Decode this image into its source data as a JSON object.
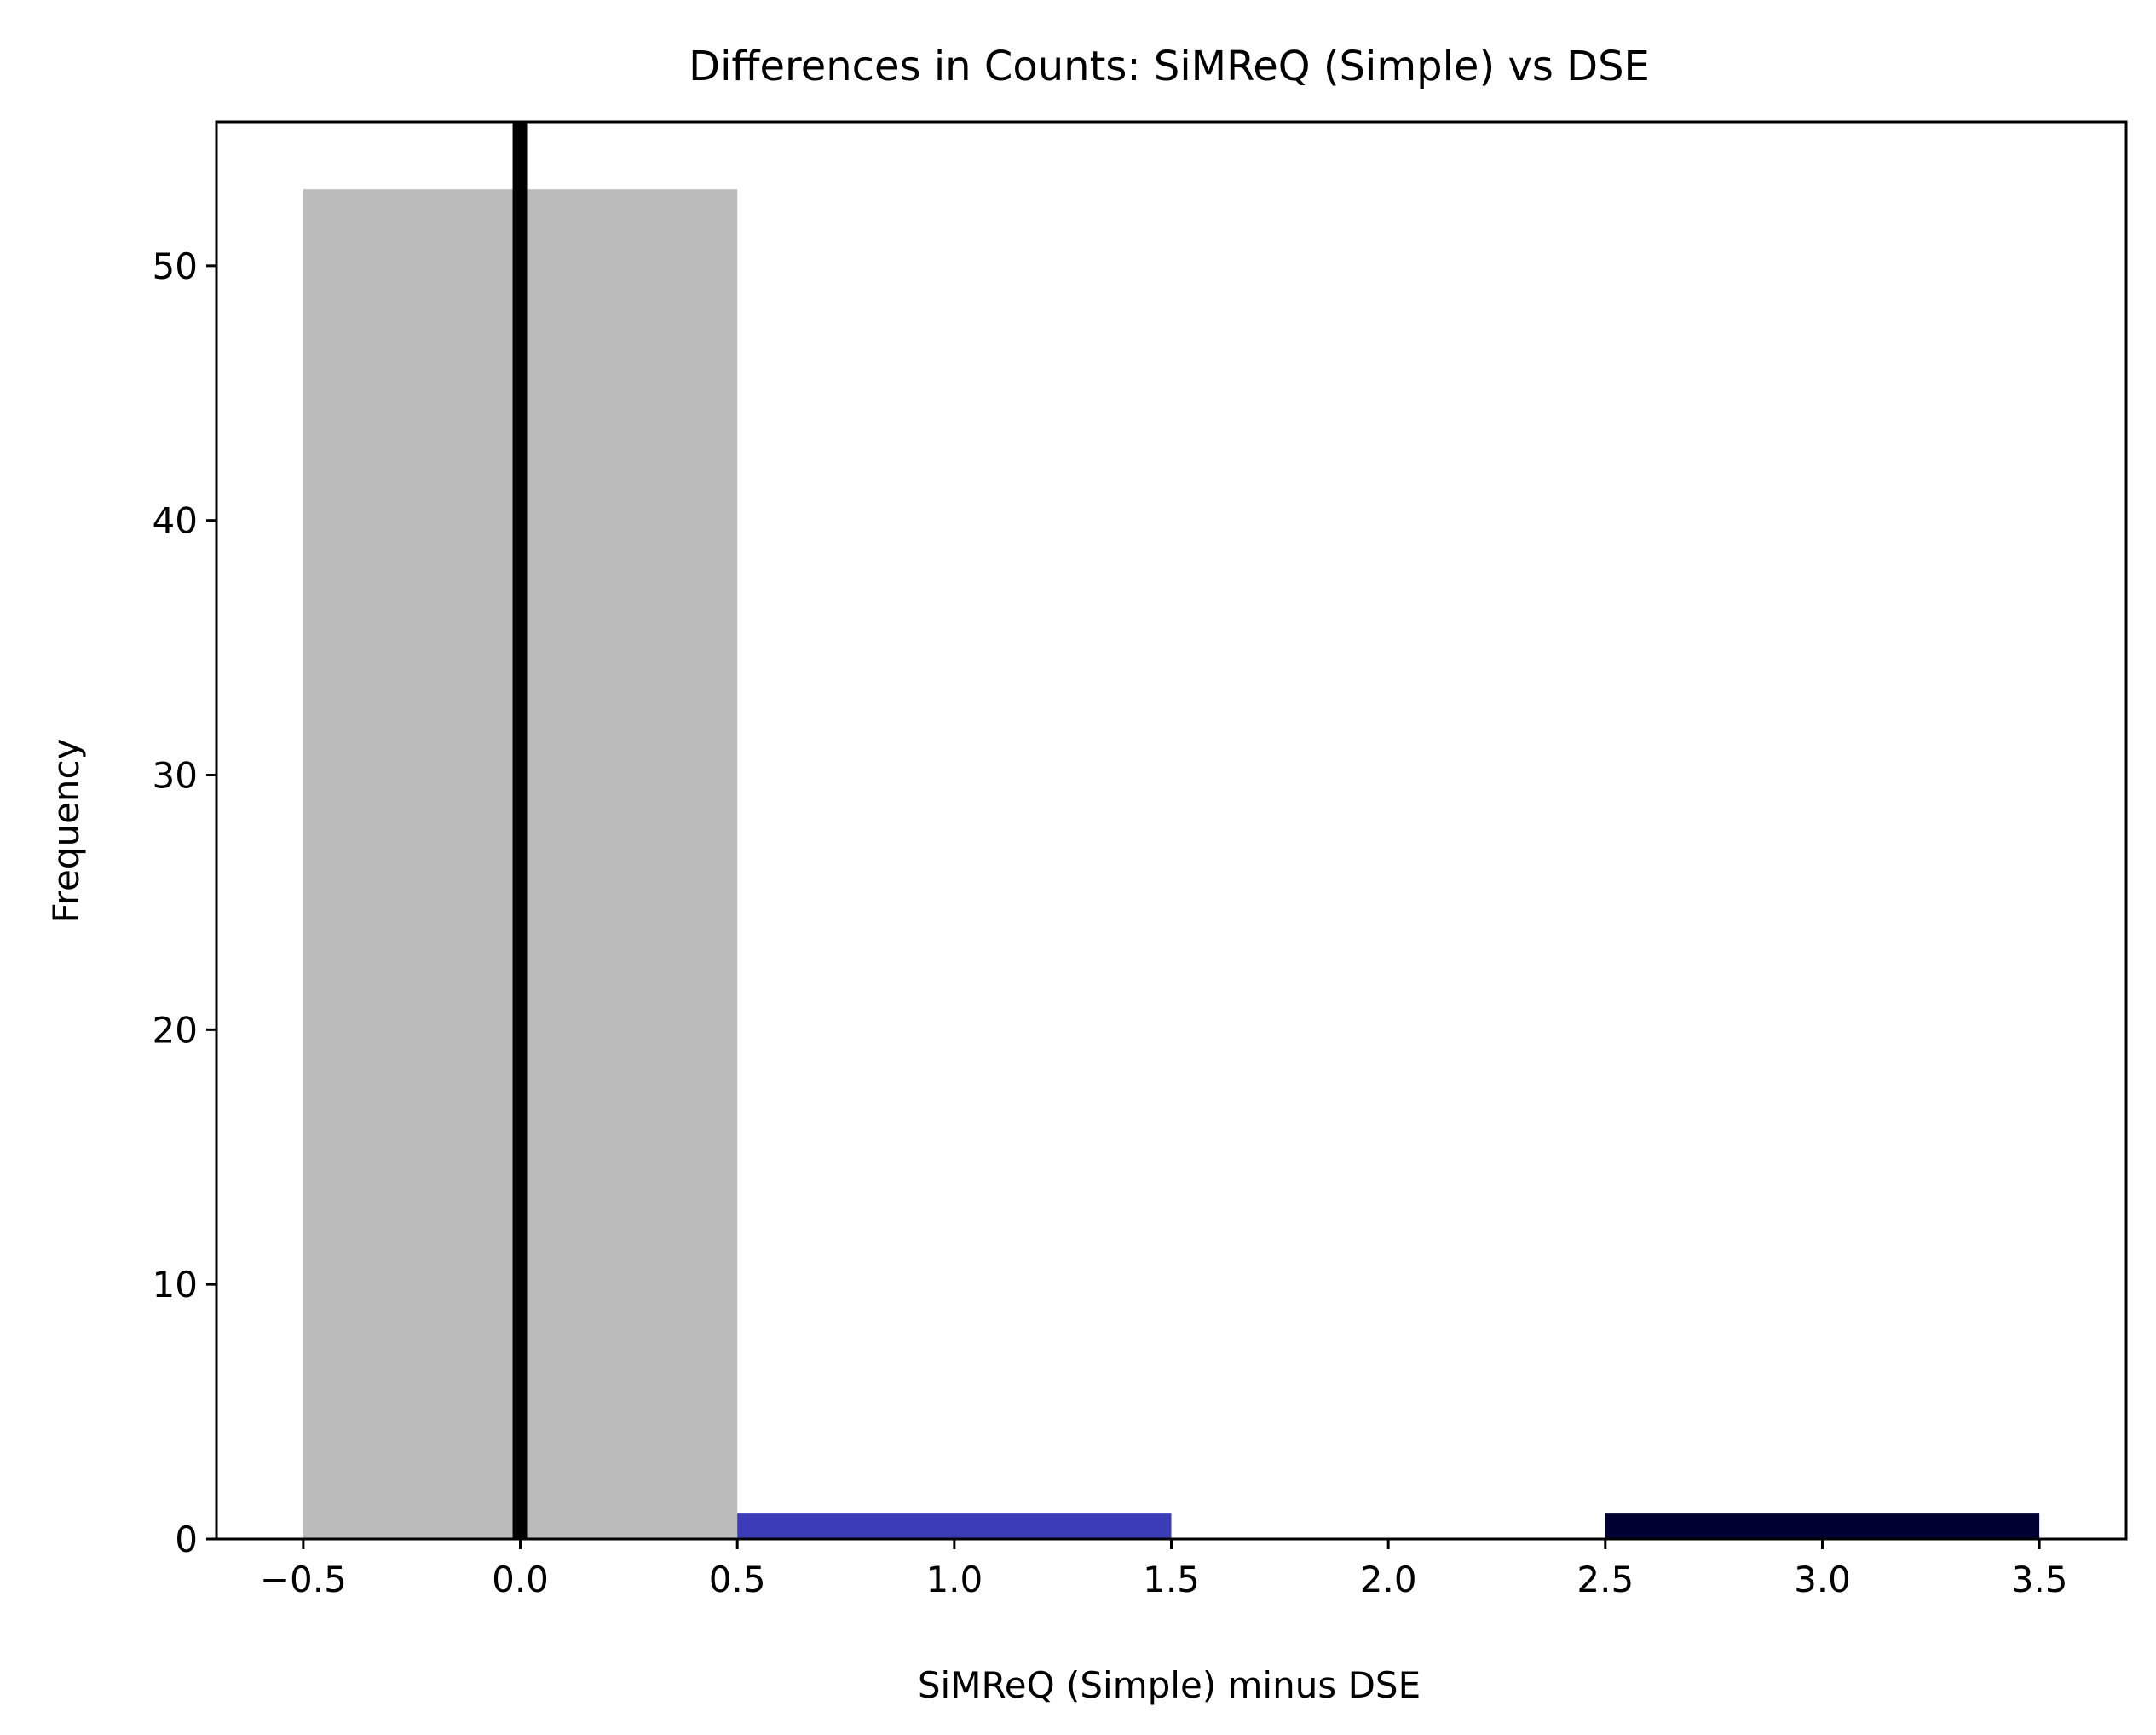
{
  "chart_data": {
    "type": "bar",
    "title": "Differences in Counts: SiMReQ (Simple) vs DSE",
    "xlabel": "SiMReQ (Simple) minus DSE",
    "ylabel": "Frequency",
    "xlim": [
      -0.7,
      3.7
    ],
    "ylim": [
      0,
      55.65
    ],
    "xticks": [
      "−0.5",
      "0.0",
      "0.5",
      "1.0",
      "1.5",
      "2.0",
      "2.5",
      "3.0",
      "3.5"
    ],
    "xtick_values": [
      -0.5,
      0.0,
      0.5,
      1.0,
      1.5,
      2.0,
      2.5,
      3.0,
      3.5
    ],
    "yticks": [
      "0",
      "10",
      "20",
      "30",
      "40",
      "50"
    ],
    "ytick_values": [
      0,
      10,
      20,
      30,
      40,
      50
    ],
    "bins": [
      {
        "x0": -0.5,
        "x1": 0.5,
        "value": 53,
        "color": "#bbbbbb"
      },
      {
        "x0": 0.5,
        "x1": 1.5,
        "value": 1,
        "color": "#3c3cb9"
      },
      {
        "x0": 1.5,
        "x1": 2.5,
        "value": 0,
        "color": "#1e1e5e"
      },
      {
        "x0": 2.5,
        "x1": 3.5,
        "value": 1,
        "color": "#000033"
      }
    ],
    "reference_line": {
      "x": 0.0,
      "color": "#000000"
    },
    "grid": false,
    "legend": "none"
  }
}
